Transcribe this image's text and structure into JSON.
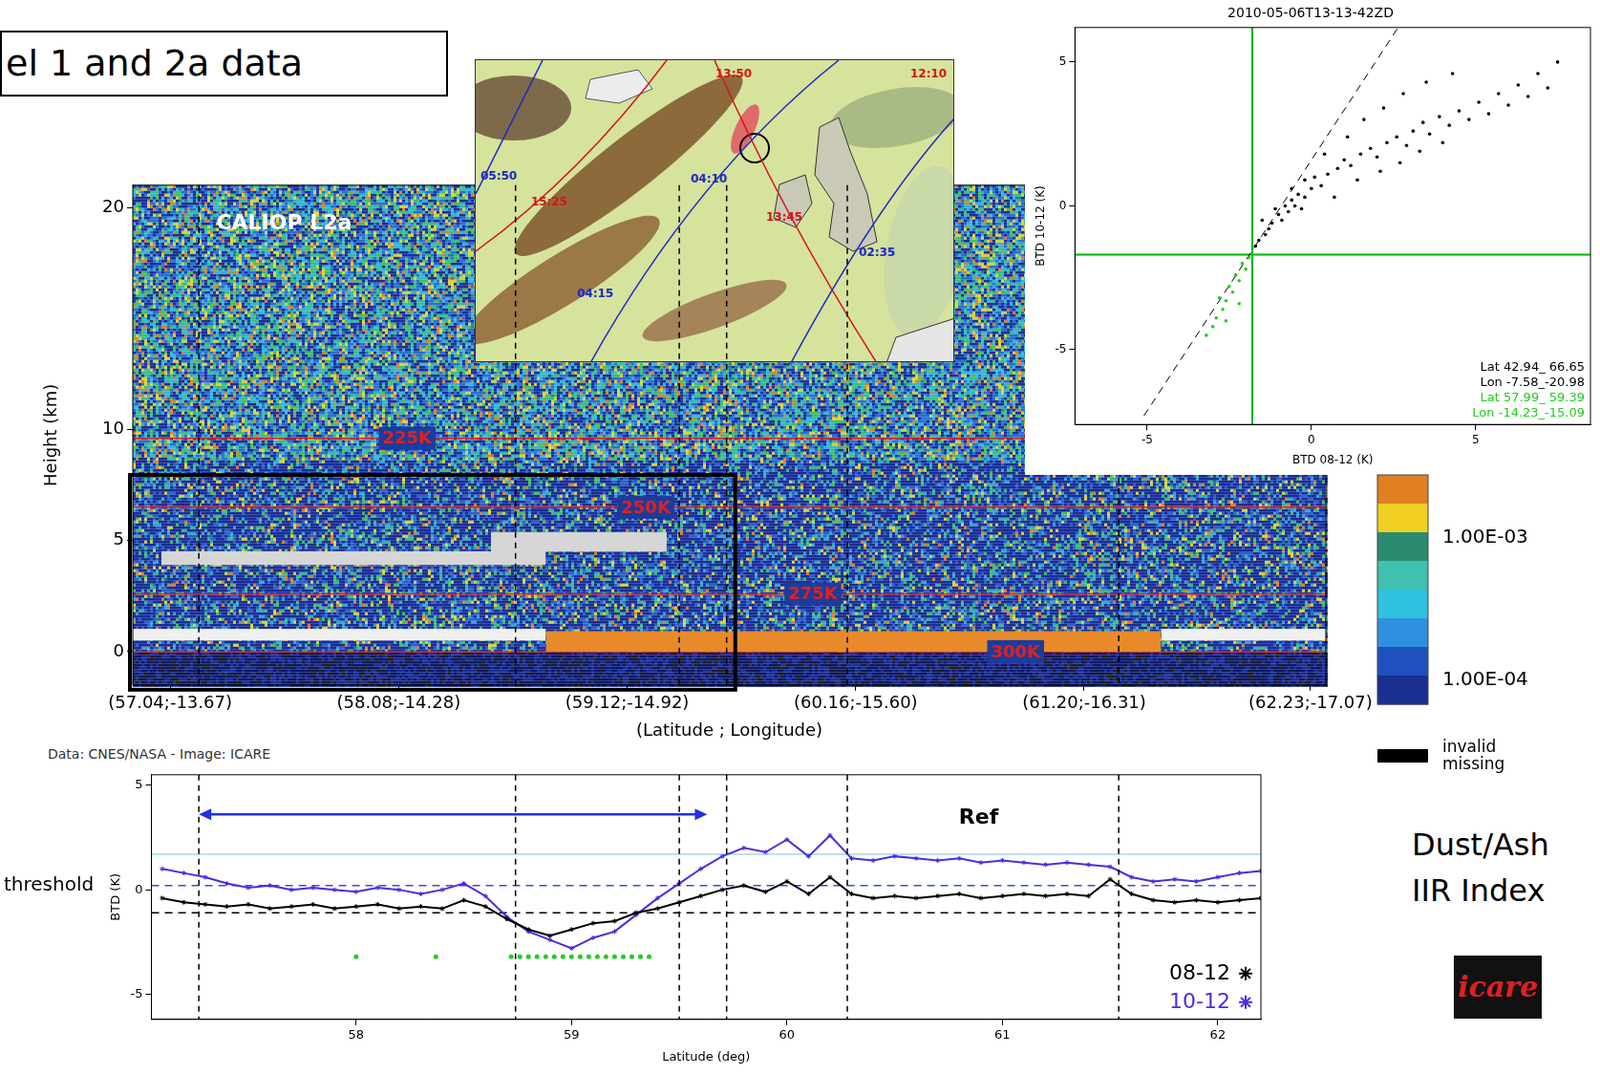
{
  "slide": {
    "title": "el 1 and 2a data",
    "side_text": [
      "Dust/Ash",
      "IIR Index"
    ],
    "logo": "icare",
    "satellite_image": {
      "labels": [
        {
          "text": "13:50",
          "color": "#d01818"
        },
        {
          "text": "12:10",
          "color": "#d01818"
        },
        {
          "text": "04:10",
          "color": "#1c2cc0"
        },
        {
          "text": "05:50",
          "color": "#1c2cc0"
        },
        {
          "text": "15:25",
          "color": "#d01818"
        },
        {
          "text": "13:45",
          "color": "#d01818"
        },
        {
          "text": "02:35",
          "color": "#1c2cc0"
        },
        {
          "text": "04:15",
          "color": "#1c2cc0"
        }
      ]
    }
  },
  "chart_data": [
    {
      "type": "curtain",
      "label": "CALIOP L2a",
      "ylabel": "Height (km)",
      "xlabel": "(Latitude ; Longitude)",
      "credit": "Data: CNES/NASA - Image: ICARE",
      "xlim": [
        56.87,
        62.3
      ],
      "xticks": [
        {
          "value": 57.04,
          "label": "(57.04;-13.67)"
        },
        {
          "value": 58.08,
          "label": "(58.08;-14.28)"
        },
        {
          "value": 59.12,
          "label": "(59.12;-14.92)"
        },
        {
          "value": 60.16,
          "label": "(60.16;-15.60)"
        },
        {
          "value": 61.2,
          "label": "(61.20;-16.31)"
        },
        {
          "value": 62.23,
          "label": "(62.23;-17.07)"
        }
      ],
      "ylim": [
        -1.5,
        21
      ],
      "yticks": [
        0,
        5,
        10,
        20
      ],
      "isotherms": [
        {
          "label": "225K",
          "height": 9.6
        },
        {
          "label": "250K",
          "height": 6.5
        },
        {
          "label": "275K",
          "height": 2.6
        },
        {
          "label": "300K",
          "height": 0
        }
      ],
      "layers": [
        {
          "x": [
            57.0,
            58.75
          ],
          "bottom": 3.9,
          "top": 4.5,
          "color": "#d6d6d6"
        },
        {
          "x": [
            58.5,
            59.3
          ],
          "bottom": 4.5,
          "top": 5.35,
          "color": "#d6d6d6"
        },
        {
          "x": [
            56.87,
            58.75
          ],
          "bottom": 0.5,
          "top": 1.0,
          "color": "#f0f0f0"
        },
        {
          "x": [
            58.75,
            61.55
          ],
          "bottom": 0,
          "top": 0.9,
          "color": "#e88a2a"
        },
        {
          "x": [
            61.55,
            62.3
          ],
          "bottom": 0.5,
          "top": 1.0,
          "color": "#f0f0f0"
        }
      ],
      "colorbar": {
        "log": true,
        "range": [
          6.6e-05,
          0.0027
        ],
        "ticks": [
          {
            "value": 0.001,
            "label": "1.00E-03"
          },
          {
            "value": 0.0001,
            "label": "1.00E-04"
          }
        ],
        "missing_label": [
          "invalid",
          "missing"
        ]
      }
    },
    {
      "type": "scatter",
      "title": "2010-05-06T13-13-42ZD",
      "xlabel": "BTD 08-12 (K)",
      "ylabel": "BTD 10-12 (K)",
      "xlim": [
        -7.2,
        8.5
      ],
      "ylim": [
        -7.6,
        6.2
      ],
      "xticks": [
        -5,
        0,
        5
      ],
      "yticks": [
        -5,
        0,
        5
      ],
      "thresholds": {
        "x": -1.8,
        "y": -1.7,
        "color": "#00b400"
      },
      "reference_line": {
        "x": [
          -5.1,
          2.7
        ],
        "y": [
          -7.3,
          6.3
        ],
        "line_style": "dashed",
        "color": "#000000"
      },
      "series": [
        {
          "color": "#000000",
          "text": [
            "Lat 42.94_ 66.65",
            "Lon -7.58_-20.98"
          ],
          "values": [
            [
              -1.6,
              -1.2
            ],
            [
              -1.4,
              -1.0
            ],
            [
              -1.2,
              -0.6
            ],
            [
              -1.0,
              -0.3
            ],
            [
              -0.8,
              0.0
            ],
            [
              -0.6,
              0.2
            ],
            [
              -0.4,
              0.4
            ],
            [
              -0.2,
              0.3
            ],
            [
              0.0,
              0.6
            ],
            [
              -1.1,
              -0.1
            ],
            [
              -0.9,
              -0.5
            ],
            [
              -0.7,
              -0.2
            ],
            [
              -0.5,
              0.0
            ],
            [
              -0.3,
              -0.1
            ],
            [
              -1.3,
              -0.8
            ],
            [
              -1.5,
              -0.5
            ],
            [
              -0.6,
              0.6
            ],
            [
              -0.2,
              0.9
            ],
            [
              0.1,
              1.0
            ],
            [
              0.3,
              0.7
            ],
            [
              0.5,
              1.1
            ],
            [
              0.8,
              1.3
            ],
            [
              1.0,
              1.6
            ],
            [
              1.2,
              1.4
            ],
            [
              1.5,
              1.8
            ],
            [
              1.8,
              2.0
            ],
            [
              2.0,
              1.7
            ],
            [
              2.3,
              2.2
            ],
            [
              2.6,
              2.4
            ],
            [
              2.9,
              2.1
            ],
            [
              3.1,
              2.6
            ],
            [
              3.4,
              2.9
            ],
            [
              3.6,
              2.5
            ],
            [
              3.9,
              3.1
            ],
            [
              4.2,
              2.8
            ],
            [
              4.5,
              3.3
            ],
            [
              4.8,
              3.0
            ],
            [
              5.1,
              3.6
            ],
            [
              5.4,
              3.2
            ],
            [
              5.7,
              3.9
            ],
            [
              6.0,
              3.5
            ],
            [
              6.3,
              4.2
            ],
            [
              6.6,
              3.8
            ],
            [
              6.9,
              4.6
            ],
            [
              7.2,
              4.1
            ],
            [
              7.5,
              5.0
            ],
            [
              0.4,
              1.8
            ],
            [
              1.1,
              2.4
            ],
            [
              1.6,
              3.0
            ],
            [
              2.2,
              3.4
            ],
            [
              2.8,
              3.9
            ],
            [
              3.5,
              4.3
            ],
            [
              4.3,
              4.6
            ],
            [
              0.7,
              0.3
            ],
            [
              1.4,
              0.9
            ],
            [
              2.1,
              1.2
            ],
            [
              2.7,
              1.5
            ],
            [
              3.3,
              1.9
            ],
            [
              4.0,
              2.2
            ],
            [
              -1.7,
              -1.4
            ]
          ]
        },
        {
          "color": "#22cc22",
          "text": [
            "Lat 57.99_ 59.39",
            "Lon -14.23_-15.09"
          ],
          "values": [
            [
              -1.9,
              -1.8
            ],
            [
              -2.0,
              -2.2
            ],
            [
              -2.1,
              -2.0
            ],
            [
              -2.2,
              -2.6
            ],
            [
              -2.3,
              -2.4
            ],
            [
              -2.4,
              -3.0
            ],
            [
              -2.5,
              -2.8
            ],
            [
              -2.6,
              -3.3
            ],
            [
              -2.7,
              -3.6
            ],
            [
              -2.8,
              -3.2
            ],
            [
              -2.9,
              -3.9
            ],
            [
              -3.0,
              -4.2
            ],
            [
              -3.2,
              -4.5
            ],
            [
              -2.6,
              -4.0
            ],
            [
              -2.2,
              -3.4
            ]
          ]
        }
      ]
    },
    {
      "type": "line",
      "xlabel": "Latitude (deg)",
      "ylabel": "BTD (K)",
      "xlim": [
        57.05,
        62.2
      ],
      "xticks": [
        58,
        59,
        60,
        61,
        62
      ],
      "ylim": [
        -6.2,
        5.5
      ],
      "yticks": [
        -5,
        0,
        5
      ],
      "legend": "lower right",
      "x": [
        57.1,
        57.2,
        57.3,
        57.4,
        57.5,
        57.6,
        57.7,
        57.8,
        57.9,
        58,
        58.1,
        58.2,
        58.3,
        58.4,
        58.5,
        58.6,
        58.7,
        58.8,
        58.9,
        59,
        59.1,
        59.2,
        59.3,
        59.4,
        59.5,
        59.6,
        59.7,
        59.8,
        59.9,
        60,
        60.1,
        60.2,
        60.3,
        60.4,
        60.5,
        60.6,
        60.7,
        60.8,
        60.9,
        61,
        61.1,
        61.2,
        61.3,
        61.4,
        61.5,
        61.6,
        61.7,
        61.8,
        61.9,
        62,
        62.1,
        62.2
      ],
      "series": [
        {
          "name": "08-12",
          "color": "#000000",
          "marker": "asterisk",
          "values": [
            -0.4,
            -0.6,
            -0.7,
            -0.8,
            -0.7,
            -0.9,
            -0.8,
            -0.7,
            -0.9,
            -0.8,
            -0.7,
            -0.9,
            -0.8,
            -0.9,
            -0.5,
            -0.8,
            -1.4,
            -1.9,
            -2.2,
            -1.9,
            -1.6,
            -1.5,
            -1.1,
            -0.9,
            -0.6,
            -0.3,
            0,
            0.2,
            -0.1,
            0.4,
            -0.2,
            0.6,
            -0.2,
            -0.4,
            -0.3,
            -0.4,
            -0.3,
            -0.2,
            -0.4,
            -0.3,
            -0.2,
            -0.3,
            -0.2,
            -0.3,
            0.5,
            -0.2,
            -0.5,
            -0.6,
            -0.5,
            -0.6,
            -0.5,
            -0.4
          ]
        },
        {
          "name": "10-12",
          "color": "#4a2de0",
          "marker": "asterisk",
          "values": [
            1.0,
            0.8,
            0.6,
            0.3,
            0.1,
            0.2,
            0,
            0.1,
            0,
            -0.1,
            0.1,
            0,
            -0.2,
            0,
            0.3,
            -0.3,
            -1.3,
            -2.0,
            -2.4,
            -2.8,
            -2.3,
            -2.0,
            -1.2,
            -0.4,
            0.3,
            1.0,
            1.6,
            2.0,
            1.8,
            2.4,
            1.6,
            2.6,
            1.5,
            1.4,
            1.6,
            1.5,
            1.4,
            1.5,
            1.3,
            1.4,
            1.3,
            1.2,
            1.3,
            1.2,
            1.1,
            0.6,
            0.4,
            0.5,
            0.4,
            0.6,
            0.8,
            0.9
          ]
        }
      ],
      "flags": {
        "color": "#22cc22",
        "y": -3.2,
        "x": [
          58.0,
          58.37,
          58.72,
          58.76,
          58.8,
          58.84,
          58.88,
          58.92,
          58.96,
          59.0,
          59.04,
          59.08,
          59.12,
          59.16,
          59.2,
          59.24,
          59.28,
          59.32,
          59.36
        ]
      },
      "hlines": [
        {
          "y": 1.7,
          "color": "#9fd9ee",
          "line_style": "solid"
        },
        {
          "y": 0.2,
          "color": "#2a50e8",
          "line_style": "dashed"
        },
        {
          "y": -1.1,
          "color": "#000000",
          "line_style": "dashed"
        }
      ],
      "vlines": [
        57.27,
        58.74,
        59.5,
        59.72,
        60.28,
        61.54
      ],
      "arrow": {
        "from": 57.27,
        "to": 59.63,
        "y": 3.6,
        "color": "#2030e0"
      },
      "annotations": [
        {
          "text": "Ref",
          "x": 60.89,
          "y": 3.4
        },
        {
          "text": "threshold",
          "y": 0.2
        }
      ]
    }
  ]
}
